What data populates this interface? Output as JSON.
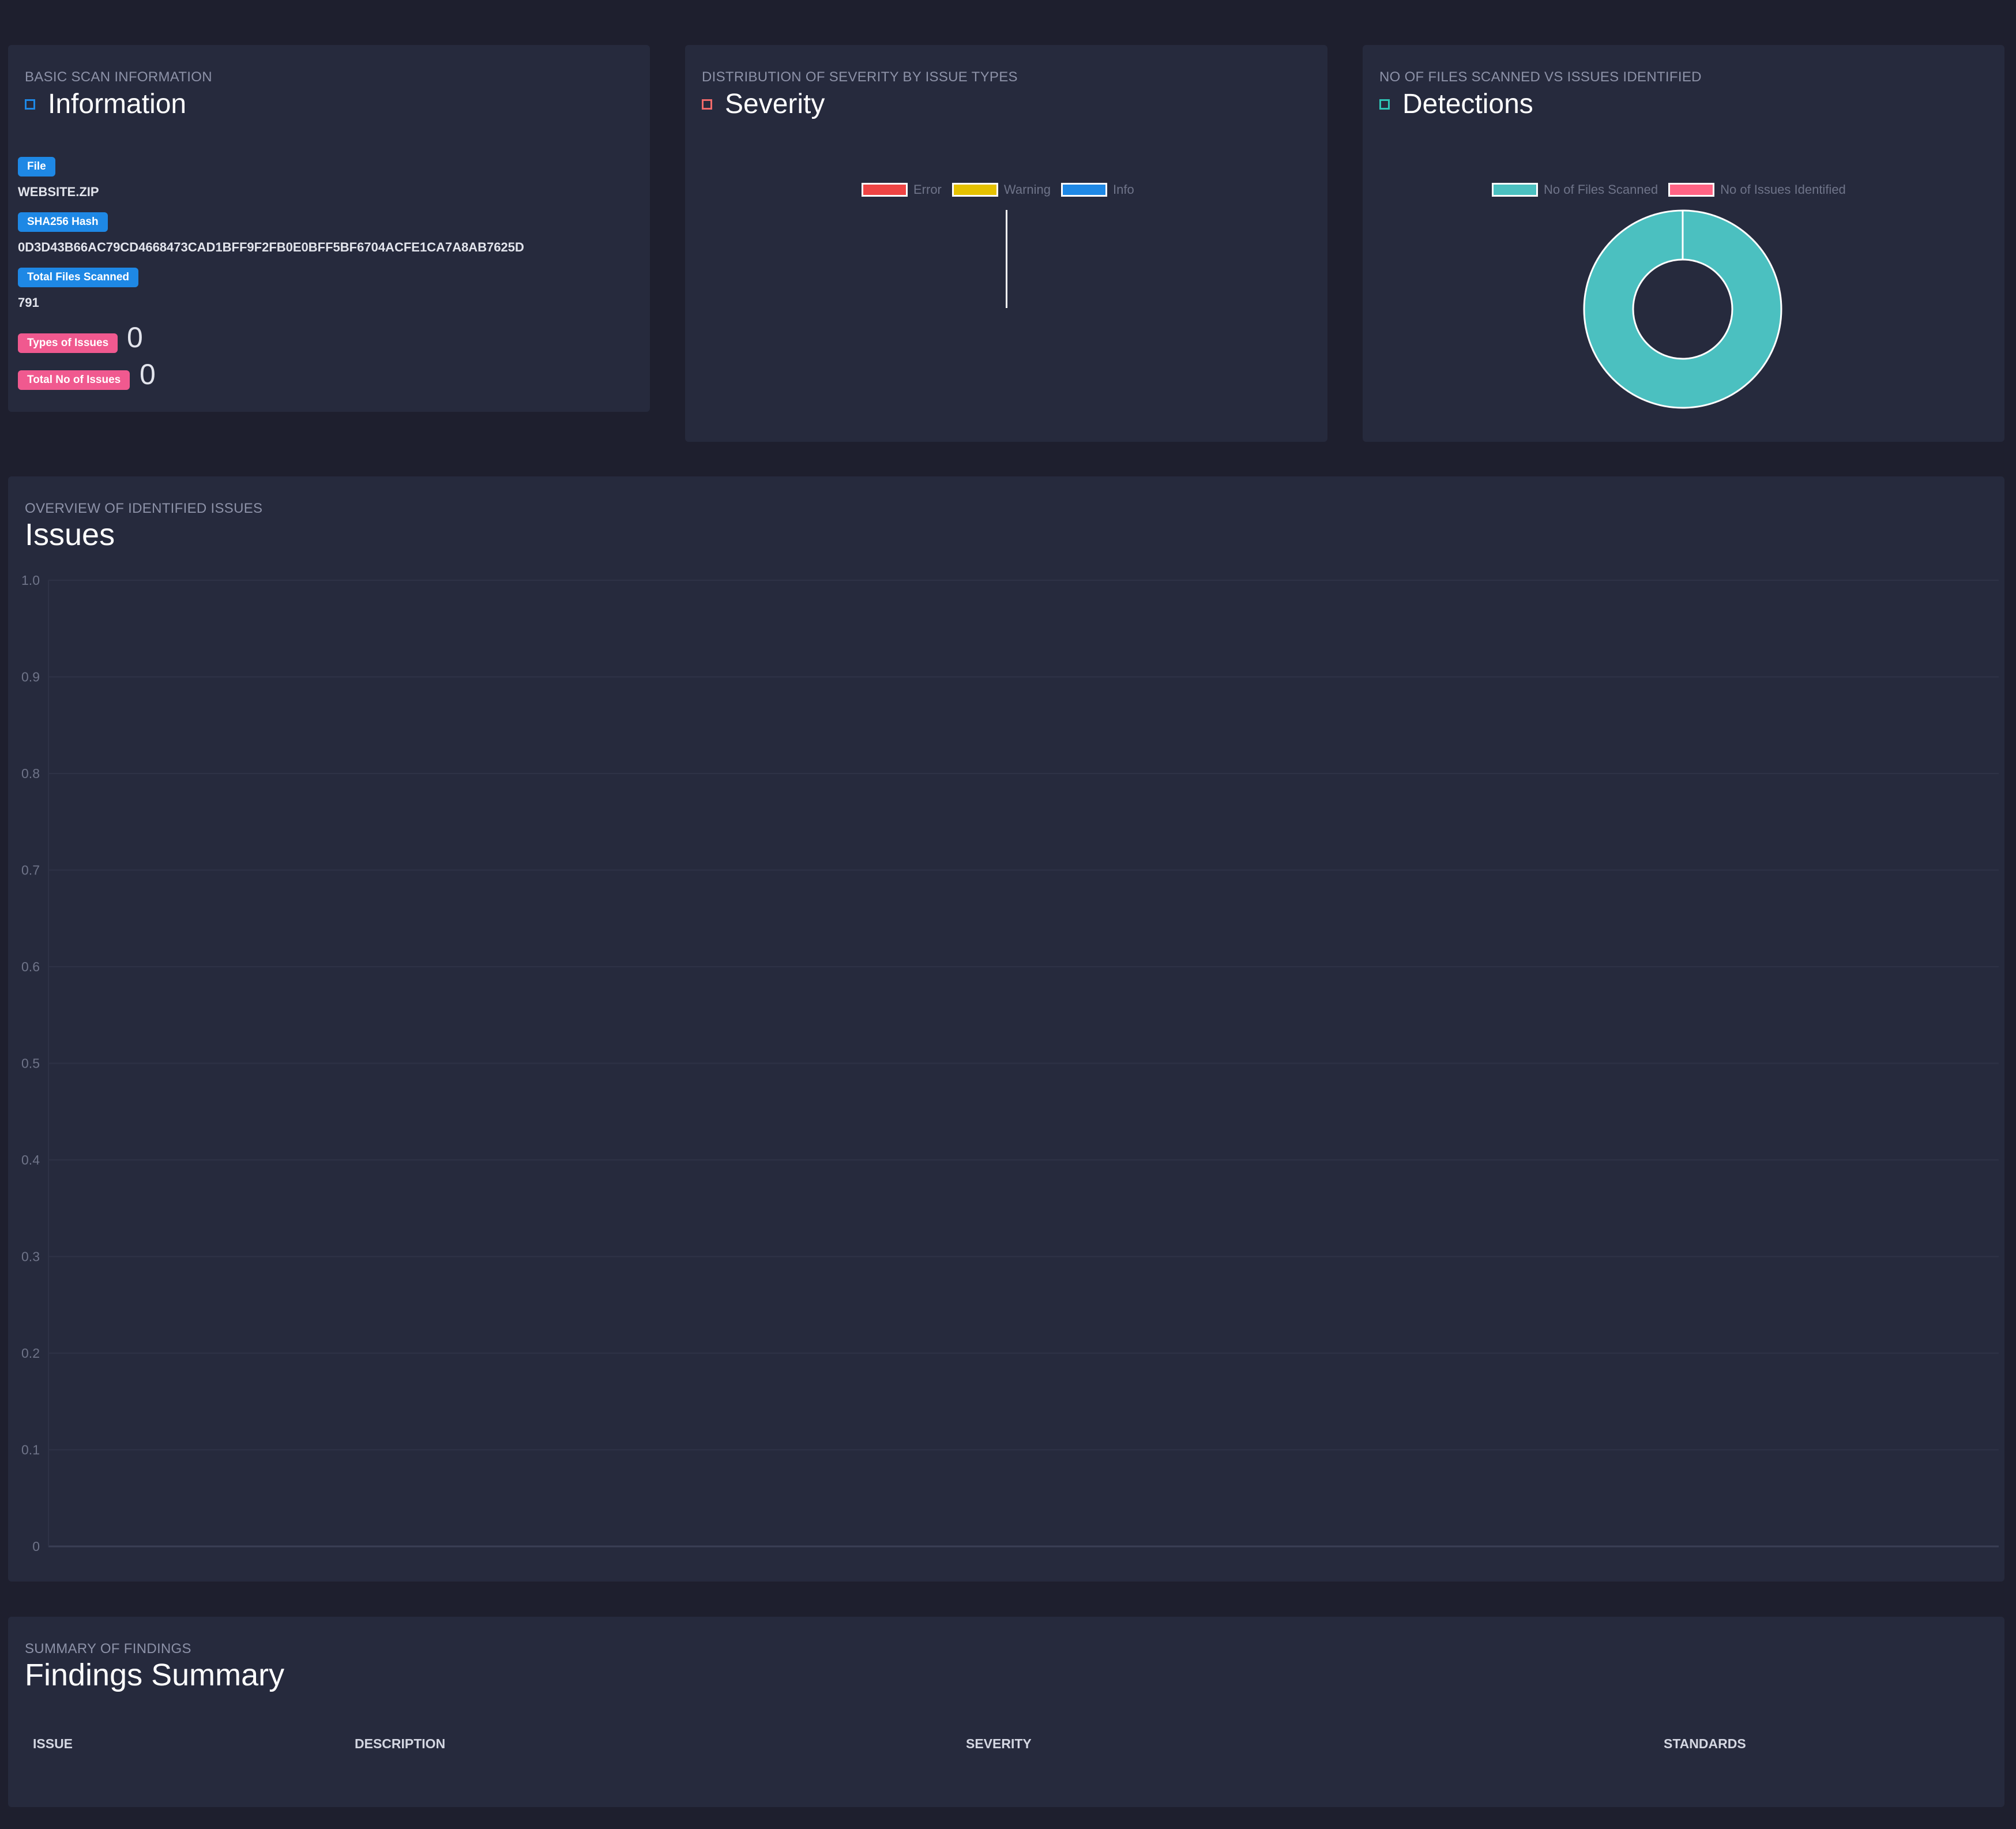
{
  "info_card": {
    "subtitle": "BASIC SCAN INFORMATION",
    "title": "Information",
    "accent": "#1e88e5",
    "file_label": "File",
    "file_value": "WEBSITE.ZIP",
    "hash_label": "SHA256 Hash",
    "hash_value": "0D3D43B66AC79CD4668473CAD1BFF9F2FB0E0BFF5BF6704ACFE1CA7A8AB7625D",
    "total_files_label": "Total Files Scanned",
    "total_files_value": "791",
    "types_label": "Types of Issues",
    "types_value": "0",
    "total_issues_label": "Total No of Issues",
    "total_issues_value": "0"
  },
  "severity_card": {
    "subtitle": "DISTRIBUTION OF SEVERITY BY ISSUE TYPES",
    "title": "Severity",
    "accent": "#f06a6a",
    "legend": [
      {
        "label": "Error",
        "color": "#ef4444"
      },
      {
        "label": "Warning",
        "color": "#e5c100"
      },
      {
        "label": "Info",
        "color": "#1e88e5"
      }
    ]
  },
  "detections_card": {
    "subtitle": "NO OF FILES SCANNED VS ISSUES IDENTIFIED",
    "title": "Detections",
    "accent": "#2ec4b6",
    "legend": [
      {
        "label": "No of Files Scanned",
        "color": "#4bc0c0"
      },
      {
        "label": "No of Issues Identified",
        "color": "#ff6384"
      }
    ]
  },
  "issues_card": {
    "subtitle": "OVERVIEW OF IDENTIFIED ISSUES",
    "title": "Issues"
  },
  "findings_card": {
    "subtitle": "SUMMARY OF FINDINGS",
    "title": "Findings Summary",
    "columns": [
      "ISSUE",
      "DESCRIPTION",
      "SEVERITY",
      "STANDARDS"
    ]
  },
  "chart_data": [
    {
      "type": "pie",
      "labels": [
        "No of Files Scanned",
        "No of Issues Identified"
      ],
      "values": [
        791,
        0
      ],
      "donut": true
    },
    {
      "type": "bar",
      "categories": [],
      "series": [],
      "ylim": [
        0,
        1.0
      ],
      "yticks": [
        "0",
        "0.1",
        "0.2",
        "0.3",
        "0.4",
        "0.5",
        "0.6",
        "0.7",
        "0.8",
        "0.9",
        "1.0"
      ],
      "grid": true
    }
  ]
}
